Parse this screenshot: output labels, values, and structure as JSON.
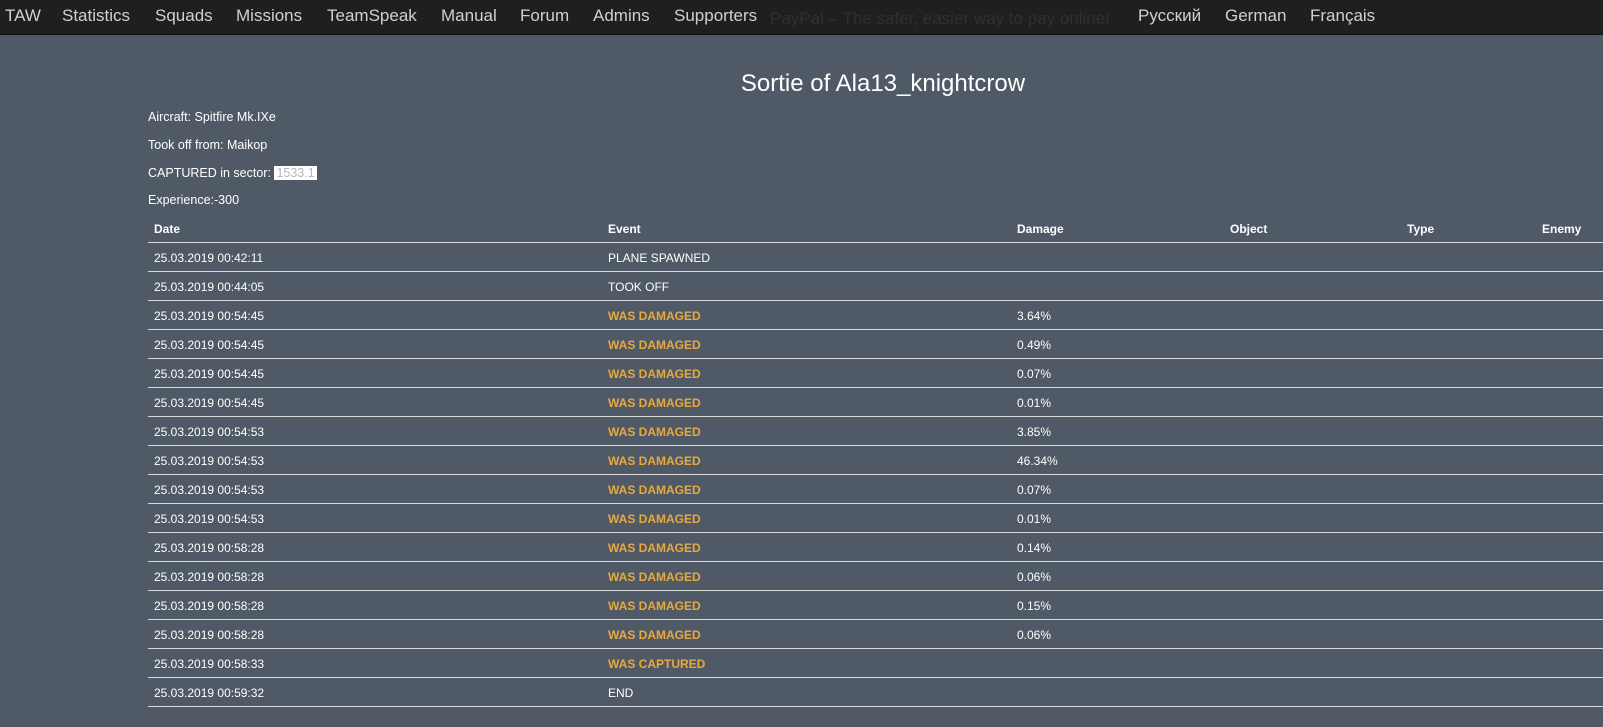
{
  "nav": {
    "items": [
      "TAW",
      "Statistics",
      "Squads",
      "Missions",
      "TeamSpeak",
      "Manual",
      "Forum",
      "Admins",
      "Supporters"
    ],
    "paypal_text": "PayPal – The safer, easier way to pay online!",
    "languages": [
      "Русский",
      "German",
      "Français"
    ]
  },
  "title": "Sortie of Ala13_knightcrow",
  "info": {
    "aircraft": "Aircraft: Spitfire Mk.IXe",
    "took_off": "Took off from: Maikop",
    "captured_label": "CAPTURED in sector:",
    "captured_sector": "1533.1",
    "experience": "Experience:-300"
  },
  "table": {
    "headers": {
      "date": "Date",
      "event": "Event",
      "damage": "Damage",
      "object": "Object",
      "type": "Type",
      "enemy": "Enemy"
    },
    "rows": [
      {
        "date": "25.03.2019 00:42:11",
        "event": "PLANE SPAWNED",
        "damage": "",
        "highlight": false
      },
      {
        "date": "25.03.2019 00:44:05",
        "event": "TOOK OFF",
        "damage": "",
        "highlight": false
      },
      {
        "date": "25.03.2019 00:54:45",
        "event": "WAS DAMAGED",
        "damage": "3.64%",
        "highlight": true
      },
      {
        "date": "25.03.2019 00:54:45",
        "event": "WAS DAMAGED",
        "damage": "0.49%",
        "highlight": true
      },
      {
        "date": "25.03.2019 00:54:45",
        "event": "WAS DAMAGED",
        "damage": "0.07%",
        "highlight": true
      },
      {
        "date": "25.03.2019 00:54:45",
        "event": "WAS DAMAGED",
        "damage": "0.01%",
        "highlight": true
      },
      {
        "date": "25.03.2019 00:54:53",
        "event": "WAS DAMAGED",
        "damage": "3.85%",
        "highlight": true
      },
      {
        "date": "25.03.2019 00:54:53",
        "event": "WAS DAMAGED",
        "damage": "46.34%",
        "highlight": true
      },
      {
        "date": "25.03.2019 00:54:53",
        "event": "WAS DAMAGED",
        "damage": "0.07%",
        "highlight": true
      },
      {
        "date": "25.03.2019 00:54:53",
        "event": "WAS DAMAGED",
        "damage": "0.01%",
        "highlight": true
      },
      {
        "date": "25.03.2019 00:58:28",
        "event": "WAS DAMAGED",
        "damage": "0.14%",
        "highlight": true
      },
      {
        "date": "25.03.2019 00:58:28",
        "event": "WAS DAMAGED",
        "damage": "0.06%",
        "highlight": true
      },
      {
        "date": "25.03.2019 00:58:28",
        "event": "WAS DAMAGED",
        "damage": "0.15%",
        "highlight": true
      },
      {
        "date": "25.03.2019 00:58:28",
        "event": "WAS DAMAGED",
        "damage": "0.06%",
        "highlight": true
      },
      {
        "date": "25.03.2019 00:58:33",
        "event": "WAS CAPTURED",
        "damage": "",
        "highlight": true
      },
      {
        "date": "25.03.2019 00:59:32",
        "event": "END",
        "damage": "",
        "highlight": false
      }
    ]
  },
  "colors": {
    "background": "#505a66",
    "navbar": "#1f1f1f",
    "highlight_event": "#e8a83e"
  }
}
